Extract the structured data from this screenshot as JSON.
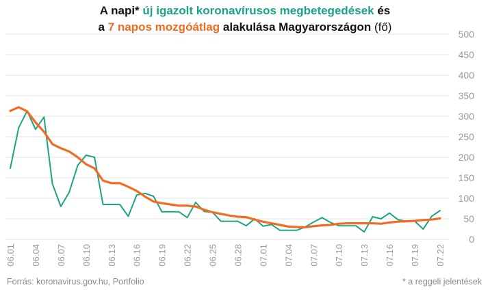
{
  "title": {
    "line1_a": "A napi* ",
    "line1_green": "új igazolt koronavírusos megbetegedések",
    "line1_b": " és",
    "line2_a": "a ",
    "line2_orange": "7 napos mozgóátlag",
    "line2_b": " alakulása Magyarországon",
    "line2_unit": " (fő)"
  },
  "footer": {
    "source": "Forrás: koronavirus.gov.hu, Portfolio",
    "note": "* a reggeli jelentések"
  },
  "colors": {
    "daily": "#1aa385",
    "average": "#f26b21",
    "grid": "#e2e2e2",
    "tick": "#9a9a9a"
  },
  "chart_data": {
    "type": "line",
    "ylim": [
      0,
      500
    ],
    "yticks": [
      0,
      50,
      100,
      150,
      200,
      250,
      300,
      350,
      400,
      450,
      500
    ],
    "grid": true,
    "y_axis_side": "right",
    "categories": [
      "06.01",
      "06.02",
      "06.03",
      "06.04",
      "06.05",
      "06.06",
      "06.07",
      "06.08",
      "06.09",
      "06.10",
      "06.11",
      "06.12",
      "06.13",
      "06.14",
      "06.15",
      "06.16",
      "06.17",
      "06.18",
      "06.19",
      "06.20",
      "06.21",
      "06.22",
      "06.23",
      "06.24",
      "06.25",
      "06.26",
      "06.27",
      "06.28",
      "06.29",
      "06.30",
      "07.01",
      "07.02",
      "07.03",
      "07.04",
      "07.05",
      "07.06",
      "07.07",
      "07.08",
      "07.09",
      "07.10",
      "07.11",
      "07.12",
      "07.13",
      "07.14",
      "07.15",
      "07.16",
      "07.17",
      "07.18",
      "07.19",
      "07.20",
      "07.21",
      "07.22"
    ],
    "x_tick_labels": [
      "06.01",
      "06.04",
      "06.07",
      "06.10",
      "06.13",
      "06.16",
      "06.19",
      "06.22",
      "06.25",
      "06.28",
      "07.01",
      "07.04",
      "07.07",
      "07.10",
      "07.13",
      "07.16",
      "07.19",
      "07.22"
    ],
    "series": [
      {
        "key": "daily",
        "values": [
          173,
          272,
          313,
          268,
          298,
          135,
          80,
          115,
          180,
          205,
          200,
          85,
          85,
          85,
          56,
          108,
          112,
          105,
          67,
          67,
          67,
          53,
          90,
          68,
          66,
          44,
          44,
          44,
          33,
          50,
          32,
          36,
          22,
          22,
          22,
          30,
          42,
          53,
          41,
          33,
          33,
          33,
          18,
          55,
          50,
          64,
          48,
          44,
          44,
          25,
          56,
          70
        ]
      },
      {
        "key": "average",
        "values": [
          313,
          322,
          312,
          285,
          262,
          232,
          222,
          214,
          200,
          183,
          173,
          143,
          137,
          137,
          128,
          118,
          104,
          92,
          88,
          85,
          82,
          82,
          80,
          72,
          66,
          62,
          58,
          55,
          54,
          48,
          43,
          39,
          35,
          31,
          30,
          29,
          32,
          34,
          35,
          38,
          39,
          39,
          39,
          39,
          38,
          41,
          43,
          44,
          45,
          47,
          48,
          51
        ]
      }
    ]
  }
}
